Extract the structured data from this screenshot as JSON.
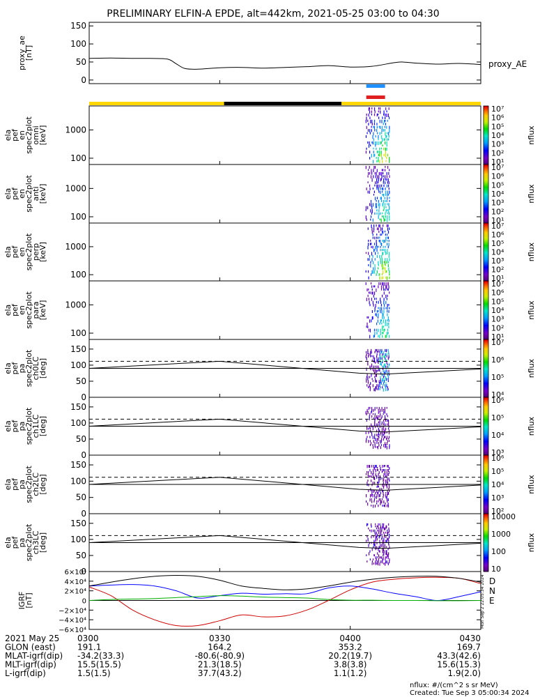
{
  "title": "PRELIMINARY ELFIN-A EPDE, alt=442km, 2021-05-25 03:00 to 04:30",
  "colors": {
    "orbit_day": "#ffd700",
    "orbit_night": "#000000",
    "interval_blue": "#1e90ff",
    "interval_red": "#e02020",
    "grf_d": "#d00000",
    "grf_n": "#0000ff",
    "grf_e": "#00b000",
    "grf_total": "#000000"
  },
  "chart_data": [
    {
      "type": "line",
      "id": "proxy_ae",
      "ylabel": [
        "proxy_ae",
        "[nT]"
      ],
      "yticks": [
        "150",
        "100",
        "50",
        "0"
      ],
      "ylim": [
        -10,
        160
      ],
      "series": [
        {
          "name": "proxy_AE",
          "x": [
            0,
            5,
            10,
            14,
            18,
            20,
            22,
            25,
            30,
            35,
            40,
            45,
            50,
            55,
            60,
            65,
            70,
            72,
            75,
            80,
            85,
            90
          ],
          "values": [
            60,
            61,
            60,
            60,
            58,
            45,
            32,
            30,
            34,
            35,
            33,
            35,
            37,
            40,
            36,
            38,
            48,
            50,
            47,
            44,
            46,
            43
          ]
        }
      ]
    },
    {
      "type": "heatmap",
      "id": "en_omni",
      "ylabel": [
        "ela",
        "pef",
        "en",
        "spec2plot",
        "omni",
        "[keV]"
      ],
      "yticks": [
        "1000",
        "100"
      ],
      "colorbar": {
        "ticks": [
          "10⁷",
          "10⁶",
          "10⁵",
          "10⁴",
          "10³",
          "10²",
          "10¹"
        ],
        "label": "nflux"
      }
    },
    {
      "type": "heatmap",
      "id": "en_anti",
      "ylabel": [
        "ela",
        "pef",
        "en",
        "spec2plot",
        "anti",
        "[keV]"
      ],
      "yticks": [
        "1000",
        "100"
      ],
      "colorbar": {
        "ticks": [
          "10⁷",
          "10⁶",
          "10⁵",
          "10⁴",
          "10³",
          "10²",
          "10¹"
        ],
        "label": "nflux"
      }
    },
    {
      "type": "heatmap",
      "id": "en_perp",
      "ylabel": [
        "ela",
        "pef",
        "en",
        "spec2plot",
        "perp",
        "[keV]"
      ],
      "yticks": [
        "1000",
        "100"
      ],
      "colorbar": {
        "ticks": [
          "10⁷",
          "10⁶",
          "10⁵",
          "10⁴",
          "10³",
          "10²",
          "10¹"
        ],
        "label": "nflux"
      }
    },
    {
      "type": "heatmap",
      "id": "en_para",
      "ylabel": [
        "ela",
        "pef",
        "en",
        "spec2plot",
        "para",
        "[keV]"
      ],
      "yticks": [
        "1000",
        "100"
      ],
      "colorbar": {
        "ticks": [
          "10⁷",
          "10⁶",
          "10⁵",
          "10⁴",
          "10³",
          "10²",
          "10¹"
        ],
        "label": "nflux"
      }
    },
    {
      "type": "heatmap",
      "id": "pa_ch0",
      "ylabel": [
        "ela",
        "pef",
        "pa",
        "spec2plot",
        "ch0LC",
        "[deg]"
      ],
      "yticks": [
        "150",
        "100",
        "50",
        "0"
      ],
      "ylim": [
        0,
        180
      ],
      "colorbar": {
        "ticks": [
          "10⁷",
          "10⁶",
          "10⁵",
          "10⁴"
        ],
        "label": "nflux"
      }
    },
    {
      "type": "heatmap",
      "id": "pa_ch1",
      "ylabel": [
        "ela",
        "pef",
        "pa",
        "spec2plot",
        "ch1LC",
        "[deg]"
      ],
      "yticks": [
        "150",
        "100",
        "50",
        "0"
      ],
      "ylim": [
        0,
        180
      ],
      "colorbar": {
        "ticks": [
          "10⁶",
          "10⁵",
          "10⁴",
          "10³"
        ],
        "label": "nflux"
      }
    },
    {
      "type": "heatmap",
      "id": "pa_ch2",
      "ylabel": [
        "ela",
        "pef",
        "pa",
        "spec2plot",
        "ch2LC",
        "[deg]"
      ],
      "yticks": [
        "150",
        "100",
        "50",
        "0"
      ],
      "ylim": [
        0,
        180
      ],
      "colorbar": {
        "ticks": [
          "10⁶",
          "10⁵",
          "10⁴",
          "10³",
          "10²"
        ],
        "label": "nflux"
      }
    },
    {
      "type": "heatmap",
      "id": "pa_ch3",
      "ylabel": [
        "ela",
        "pef",
        "pa",
        "spec2plot",
        "ch3LC",
        "[deg]"
      ],
      "yticks": [
        "150",
        "100",
        "50",
        "0"
      ],
      "ylim": [
        0,
        180
      ],
      "colorbar": {
        "ticks": [
          "10000",
          "1000",
          "100",
          "10"
        ],
        "label": "nflux"
      }
    },
    {
      "type": "line",
      "id": "igrf",
      "ylabel": [
        "IGRF",
        "[nT]"
      ],
      "yticks": [
        "6×10⁴",
        "4×10⁴",
        "2×10⁴",
        "0",
        "−2×10⁴",
        "−4×10⁴",
        "−6×10⁴"
      ],
      "ylim": [
        -60000,
        60000
      ],
      "legend": [
        "D",
        "N",
        "E"
      ],
      "series": [
        {
          "name": "D",
          "x": [
            0,
            5,
            10,
            15,
            20,
            25,
            30,
            35,
            40,
            45,
            50,
            55,
            60,
            65,
            70,
            75,
            80,
            85,
            90
          ],
          "values": [
            28000,
            10000,
            -20000,
            -40000,
            -52000,
            -52000,
            -42000,
            -30000,
            -34000,
            -32000,
            -20000,
            0,
            22000,
            38000,
            44000,
            47000,
            48000,
            46000,
            35000
          ]
        },
        {
          "name": "N",
          "x": [
            0,
            5,
            10,
            15,
            20,
            25,
            30,
            35,
            40,
            45,
            50,
            55,
            60,
            65,
            70,
            75,
            80,
            85,
            90
          ],
          "values": [
            30000,
            32000,
            33000,
            30000,
            20000,
            5000,
            10000,
            15000,
            13000,
            14000,
            14000,
            26000,
            30000,
            24000,
            15000,
            8000,
            0,
            8000,
            18000
          ]
        },
        {
          "name": "E",
          "x": [
            0,
            5,
            10,
            15,
            20,
            25,
            30,
            35,
            40,
            45,
            50,
            55,
            60,
            65,
            70,
            75,
            80,
            85,
            90
          ],
          "values": [
            0,
            2000,
            3000,
            4000,
            6000,
            8000,
            10000,
            9000,
            7000,
            6000,
            5000,
            2000,
            500,
            500,
            0,
            0,
            -500,
            -500,
            0
          ]
        },
        {
          "name": "total",
          "x": [
            0,
            5,
            10,
            15,
            20,
            25,
            30,
            35,
            40,
            45,
            50,
            55,
            60,
            65,
            70,
            75,
            80,
            85,
            90
          ],
          "values": [
            30000,
            38000,
            45000,
            50000,
            52000,
            50000,
            42000,
            30000,
            25000,
            22000,
            24000,
            30000,
            38000,
            44000,
            48000,
            50000,
            50000,
            46000,
            38000
          ]
        }
      ]
    }
  ],
  "time_axis": {
    "xlim_minutes": [
      0,
      90
    ],
    "tick_minutes": [
      0,
      30,
      60,
      90
    ]
  },
  "heatmap_events": {
    "start_min": 63.5,
    "end_min": 69,
    "peak_min": 67.5
  },
  "interval_bars": {
    "start_min": 64,
    "end_min": 68
  },
  "orbit_bar": [
    {
      "start_min": 0,
      "end_min": 31,
      "kind": "day"
    },
    {
      "start_min": 31,
      "end_min": 58,
      "kind": "night"
    },
    {
      "start_min": 58,
      "end_min": 90,
      "kind": "day"
    }
  ],
  "pa_overlays": {
    "solid_line": {
      "x": [
        0,
        30,
        62,
        68,
        90
      ],
      "values": [
        90,
        112,
        75,
        72,
        88
      ]
    },
    "dashed_upper": 112,
    "dashed_lower": 90
  },
  "orbit_table": {
    "rows": [
      {
        "label": "2021 May 25",
        "values": [
          "0300",
          "0330",
          "0400",
          "0430"
        ]
      },
      {
        "label": "GLON (east)",
        "values": [
          "191.1",
          "164.2",
          "353.2",
          "169.7"
        ]
      },
      {
        "label": "MLAT-igrf(dip)",
        "values": [
          "-34.2(33.3)",
          "-80.6(-80.9)",
          "20.2(19.7)",
          "43.3(42.6)"
        ]
      },
      {
        "label": "MLT-igrf(dip)",
        "values": [
          "15.5(15.5)",
          "21.3(18.5)",
          "3.8(3.8)",
          "15.6(15.3)"
        ]
      },
      {
        "label": "L-igrf(dip)",
        "values": [
          "1.5(1.5)",
          "37.7(43.2)",
          "1.1(1.2)",
          "1.9(2.0)"
        ]
      }
    ]
  },
  "footer": {
    "units": "nflux: #/(cm^2 s sr MeV)",
    "created": "Created: Tue Sep  3 05:00:34 2024",
    "side_stamp": "Mon Sep  2 22:05:34 2024"
  }
}
